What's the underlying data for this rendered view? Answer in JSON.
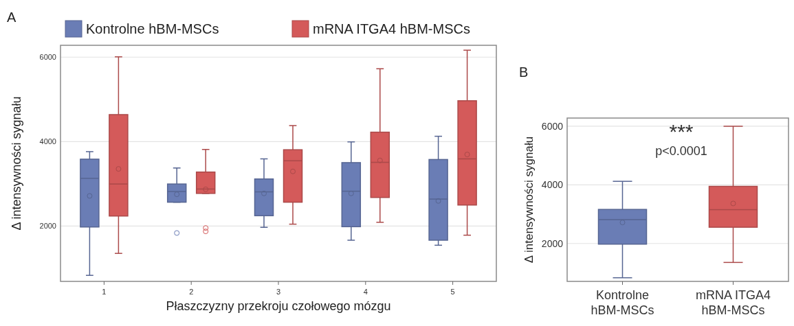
{
  "chart_data": [
    {
      "type": "box",
      "title": "A",
      "xlabel": "Płaszczyzny przekroju czołowego mózgu",
      "ylabel": "Δ intensywności sygnału",
      "categories": [
        "1",
        "2",
        "3",
        "4",
        "5"
      ],
      "ylim": [
        690,
        6280
      ],
      "yticks": [
        2000,
        4000,
        6000
      ],
      "grid": "y",
      "legend": "top",
      "marker": "circle",
      "series": [
        {
          "name": "Kontrolne hBM-MSCs",
          "color": "#6a7db5",
          "boxes": [
            {
              "low": 833,
              "q1": 1978,
              "median": 3130,
              "q3": 3584,
              "high": 3762,
              "mean": 2714
            },
            {
              "low": 2565,
              "q1": 2565,
              "median": 2818,
              "q3": 2996,
              "high": 3375,
              "mean": 2751,
              "outliers": [
                1836
              ]
            },
            {
              "low": 1970,
              "q1": 2245,
              "median": 2810,
              "q3": 3115,
              "high": 3591,
              "mean": 2773
            },
            {
              "low": 1665,
              "q1": 1985,
              "median": 2825,
              "q3": 3502,
              "high": 3993,
              "mean": 2773
            },
            {
              "low": 1546,
              "q1": 1665,
              "median": 2639,
              "q3": 3576,
              "high": 4126,
              "mean": 2595
            }
          ]
        },
        {
          "name": "mRNA ITGA4 hBM-MSCs",
          "color": "#d45a5a",
          "boxes": [
            {
              "low": 1353,
              "q1": 2238,
              "median": 2996,
              "q3": 4639,
              "high": 6007,
              "mean": 3353
            },
            {
              "low": 2773,
              "q1": 2773,
              "median": 2877,
              "q3": 3279,
              "high": 3814,
              "mean": 2870,
              "outliers": [
                1955,
                1874
              ]
            },
            {
              "low": 2045,
              "q1": 2565,
              "median": 3546,
              "q3": 3807,
              "high": 4379,
              "mean": 3294
            },
            {
              "low": 2089,
              "q1": 2677,
              "median": 3509,
              "q3": 4223,
              "high": 5725,
              "mean": 3554
            },
            {
              "low": 1784,
              "q1": 2498,
              "median": 3591,
              "q3": 4967,
              "high": 6164,
              "mean": 3695
            }
          ]
        }
      ]
    },
    {
      "type": "box",
      "title": "B",
      "ylabel": "Δ intensywności sygnału",
      "categories": [
        "Kontrolne hBM-MSCs",
        "mRNA ITGA4 hBM-MSCs"
      ],
      "ylim": [
        706,
        6280
      ],
      "yticks": [
        2000,
        4000,
        6000
      ],
      "grid": "y",
      "marker": "circle",
      "annotations": [
        "***",
        "p<0.0001"
      ],
      "series": [
        {
          "colors": [
            "#6a7db5",
            "#d45a5a"
          ],
          "boxes": [
            {
              "low": 830,
              "q1": 1977,
              "median": 2811,
              "q3": 3162,
              "high": 4121,
              "mean": 2717
            },
            {
              "low": 1353,
              "q1": 2554,
              "median": 3154,
              "q3": 3949,
              "high": 6000,
              "mean": 3365
            }
          ]
        }
      ]
    }
  ]
}
